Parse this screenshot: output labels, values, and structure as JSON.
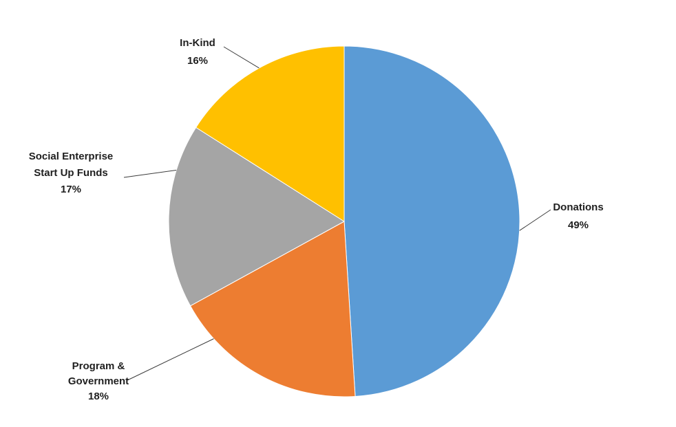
{
  "chart_data": {
    "type": "pie",
    "start_angle_deg": 0,
    "direction": "clockwise",
    "legend": "none",
    "slices": [
      {
        "name": "Donations",
        "label_lines": [
          "Donations"
        ],
        "value": 49,
        "value_label": "49%",
        "color": "#5B9BD5"
      },
      {
        "name": "Program & Government",
        "label_lines": [
          "Program &",
          "Government"
        ],
        "value": 18,
        "value_label": "18%",
        "color": "#ED7D31"
      },
      {
        "name": "Social Enterprise Start Up Funds",
        "label_lines": [
          "Social Enterprise",
          "Start Up Funds"
        ],
        "value": 17,
        "value_label": "17%",
        "color": "#A5A5A5"
      },
      {
        "name": "In-Kind",
        "label_lines": [
          "In-Kind"
        ],
        "value": 16,
        "value_label": "16%",
        "color": "#FFC000"
      }
    ]
  }
}
